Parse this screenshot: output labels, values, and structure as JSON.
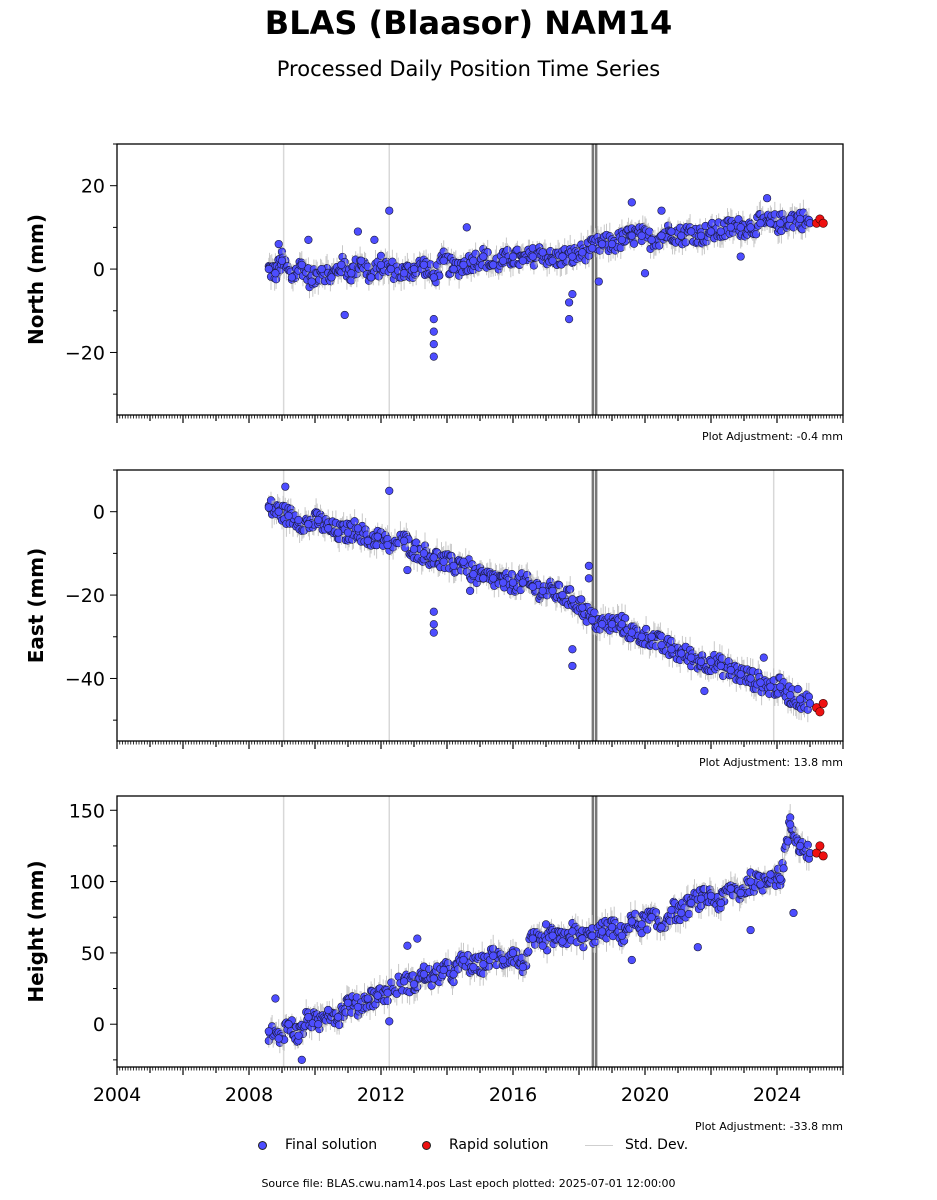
{
  "title": "BLAS (Blaasor) NAM14",
  "subtitle": "Processed Daily Position Time Series",
  "legend": {
    "final": "Final solution",
    "rapid": "Rapid solution",
    "std": "Std. Dev."
  },
  "footer": "Source file: BLAS.cwu.nam14.pos  Last epoch plotted: 2025-07-01 12:00:00",
  "colors": {
    "final": "#4d4dff",
    "rapid": "#ee1111",
    "std": "#bbbbbb",
    "event_line": "#777777",
    "annotation_line": "#d8d8d8"
  },
  "chart_data": [
    {
      "type": "scatter",
      "id": "north",
      "ylabel": "North (mm)",
      "adjustment": "Plot Adjustment: -0.4 mm",
      "xlim": [
        2004,
        2026
      ],
      "ylim": [
        -35,
        30
      ],
      "yticks": [
        -20,
        0,
        20
      ],
      "xticks": [
        2004,
        2008,
        2012,
        2016,
        2020,
        2024
      ],
      "xtick_labels": [
        "2004",
        "2008",
        "2012",
        "2016",
        "2020",
        "2024"
      ],
      "show_xtick_labels": false,
      "event_lines": [
        2018.42,
        2018.52
      ],
      "annotation_lines": [
        2009.05,
        2012.25
      ],
      "series": [
        {
          "name": "Final solution",
          "x": [
            2008.6,
            2008.8,
            2009.0,
            2009.3,
            2009.6,
            2009.9,
            2010.2,
            2010.5,
            2010.8,
            2011.1,
            2011.4,
            2011.7,
            2012.0,
            2012.3,
            2012.7,
            2013.0,
            2013.3,
            2013.6,
            2013.9,
            2014.2,
            2014.5,
            2014.8,
            2015.1,
            2015.4,
            2015.7,
            2016.0,
            2016.3,
            2016.6,
            2016.9,
            2017.2,
            2017.5,
            2017.8,
            2018.1,
            2018.4,
            2018.7,
            2019.0,
            2019.3,
            2019.6,
            2019.9,
            2020.2,
            2020.5,
            2020.8,
            2021.1,
            2021.4,
            2021.7,
            2022.0,
            2022.3,
            2022.6,
            2022.9,
            2023.2,
            2023.5,
            2023.8,
            2024.1,
            2024.4,
            2024.7,
            2025.0
          ],
          "y": [
            0,
            -1,
            2,
            -2,
            1,
            -3,
            0,
            -2,
            1,
            -1,
            2,
            -2,
            1,
            0,
            -1,
            0,
            1,
            -2,
            2,
            0,
            1,
            2,
            3,
            1,
            2,
            3,
            2,
            3,
            4,
            2,
            3,
            3,
            4,
            5,
            6,
            6,
            7,
            8,
            8,
            7,
            8,
            9,
            8,
            9,
            8,
            9,
            9,
            10,
            10,
            10,
            11,
            11,
            11,
            12,
            12,
            11
          ]
        },
        {
          "name": "Rapid solution",
          "x": [
            2025.2,
            2025.3,
            2025.4
          ],
          "y": [
            11,
            12,
            11
          ]
        }
      ],
      "outliers": {
        "x": [
          2008.9,
          2009.8,
          2010.9,
          2011.3,
          2011.8,
          2012.25,
          2013.6,
          2013.6,
          2013.6,
          2013.6,
          2014.6,
          2017.7,
          2017.7,
          2017.8,
          2018.6,
          2019.6,
          2020.0,
          2020.5,
          2022.9,
          2023.7
        ],
        "y": [
          6,
          7,
          -11,
          9,
          7,
          14,
          -12,
          -15,
          -18,
          -21,
          10,
          -12,
          -8,
          -6,
          -3,
          16,
          -1,
          14,
          3,
          17
        ]
      }
    },
    {
      "type": "scatter",
      "id": "east",
      "ylabel": "East (mm)",
      "adjustment": "Plot Adjustment: 13.8 mm",
      "xlim": [
        2004,
        2026
      ],
      "ylim": [
        -55,
        10
      ],
      "yticks": [
        -40,
        -20,
        0
      ],
      "xticks": [
        2004,
        2008,
        2012,
        2016,
        2020,
        2024
      ],
      "xtick_labels": [
        "2004",
        "2008",
        "2012",
        "2016",
        "2020",
        "2024"
      ],
      "show_xtick_labels": false,
      "event_lines": [
        2018.42,
        2018.52
      ],
      "annotation_lines": [
        2009.05,
        2012.25,
        2023.9
      ],
      "series": [
        {
          "name": "Final solution",
          "x": [
            2008.6,
            2008.9,
            2009.2,
            2009.5,
            2009.8,
            2010.1,
            2010.4,
            2010.7,
            2011.0,
            2011.3,
            2011.6,
            2011.9,
            2012.2,
            2012.7,
            2013.0,
            2013.3,
            2013.6,
            2013.9,
            2014.2,
            2014.5,
            2014.8,
            2015.1,
            2015.4,
            2015.7,
            2016.0,
            2016.3,
            2016.6,
            2016.9,
            2017.2,
            2017.5,
            2017.8,
            2018.1,
            2018.4,
            2018.7,
            2019.0,
            2019.3,
            2019.6,
            2019.9,
            2020.2,
            2020.5,
            2020.8,
            2021.1,
            2021.4,
            2021.7,
            2022.0,
            2022.3,
            2022.6,
            2022.9,
            2023.2,
            2023.5,
            2023.8,
            2024.1,
            2024.4,
            2024.7,
            2025.0
          ],
          "y": [
            1,
            0,
            -1,
            -2,
            -3,
            -2,
            -4,
            -5,
            -5,
            -4,
            -7,
            -6,
            -8,
            -7,
            -9,
            -10,
            -11,
            -12,
            -13,
            -12,
            -15,
            -16,
            -16,
            -17,
            -17,
            -17,
            -18,
            -19,
            -19,
            -20,
            -21,
            -23,
            -26,
            -27,
            -27,
            -27,
            -29,
            -30,
            -30,
            -32,
            -33,
            -34,
            -35,
            -36,
            -36,
            -37,
            -38,
            -39,
            -40,
            -41,
            -42,
            -42,
            -44,
            -45,
            -46
          ]
        },
        {
          "name": "Rapid solution",
          "x": [
            2025.2,
            2025.3,
            2025.4
          ],
          "y": [
            -47,
            -48,
            -46
          ]
        }
      ],
      "outliers": {
        "x": [
          2009.1,
          2012.25,
          2012.8,
          2013.6,
          2013.6,
          2013.6,
          2014.7,
          2017.8,
          2017.8,
          2018.3,
          2018.3,
          2021.8,
          2023.6
        ],
        "y": [
          6,
          5,
          -14,
          -24,
          -27,
          -29,
          -19,
          -33,
          -37,
          -13,
          -16,
          -43,
          -35
        ]
      }
    },
    {
      "type": "scatter",
      "id": "height",
      "ylabel": "Height (mm)",
      "adjustment": "Plot Adjustment: -33.8 mm",
      "xlim": [
        2004,
        2026
      ],
      "ylim": [
        -30,
        160
      ],
      "yticks": [
        0,
        50,
        100,
        150
      ],
      "xticks": [
        2004,
        2008,
        2012,
        2016,
        2020,
        2024
      ],
      "xtick_labels": [
        "2004",
        "2008",
        "2012",
        "2016",
        "2020",
        "2024"
      ],
      "show_xtick_labels": true,
      "event_lines": [
        2018.42,
        2018.52
      ],
      "annotation_lines": [
        2009.05,
        2012.25
      ],
      "series": [
        {
          "name": "Final solution",
          "x": [
            2008.6,
            2008.9,
            2009.2,
            2009.5,
            2009.8,
            2010.1,
            2010.4,
            2010.7,
            2011.0,
            2011.3,
            2011.6,
            2011.9,
            2012.2,
            2012.7,
            2013.0,
            2013.3,
            2013.6,
            2013.9,
            2014.2,
            2014.5,
            2014.8,
            2015.1,
            2015.4,
            2015.7,
            2016.0,
            2016.3,
            2016.6,
            2016.9,
            2017.2,
            2017.5,
            2017.8,
            2018.1,
            2018.4,
            2018.7,
            2019.0,
            2019.3,
            2019.6,
            2019.9,
            2020.2,
            2020.5,
            2020.8,
            2021.1,
            2021.4,
            2021.7,
            2022.0,
            2022.3,
            2022.6,
            2022.9,
            2023.2,
            2023.5,
            2023.8,
            2024.1,
            2024.4,
            2024.7,
            2025.0
          ],
          "y": [
            -5,
            -10,
            0,
            -8,
            5,
            0,
            10,
            5,
            15,
            12,
            18,
            20,
            22,
            30,
            28,
            35,
            32,
            38,
            35,
            45,
            40,
            42,
            48,
            45,
            50,
            40,
            60,
            55,
            62,
            58,
            65,
            60,
            62,
            65,
            68,
            62,
            72,
            70,
            75,
            68,
            80,
            78,
            85,
            88,
            90,
            85,
            95,
            92,
            100,
            98,
            105,
            102,
            140,
            125,
            120
          ]
        },
        {
          "name": "Rapid solution",
          "x": [
            2025.2,
            2025.3,
            2025.4
          ],
          "y": [
            120,
            125,
            118
          ]
        }
      ],
      "outliers": {
        "x": [
          2008.8,
          2009.6,
          2012.25,
          2012.8,
          2013.1,
          2017.0,
          2019.6,
          2021.6,
          2023.2,
          2024.5
        ],
        "y": [
          18,
          -25,
          2,
          55,
          60,
          70,
          45,
          54,
          66,
          78
        ]
      }
    }
  ]
}
